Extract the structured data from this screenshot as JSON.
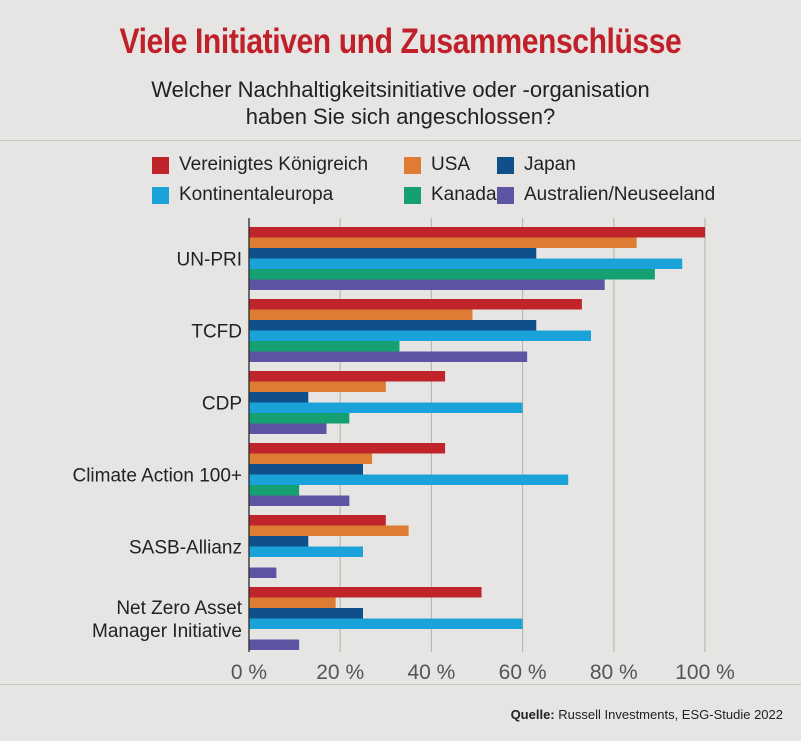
{
  "title": "Viele Initiativen und Zusammenschlüsse",
  "subtitle_line1": "Welcher Nachhaltigkeitsinitiative oder -organisation",
  "subtitle_line2": "haben Sie sich angeschlossen?",
  "source_label": "Quelle:",
  "source_text": "Russell Investments, ESG-Studie 2022",
  "colors": {
    "background": "#e6e5e3",
    "title": "#c0202a",
    "gridline": "#b9b8b5"
  },
  "chart_data": {
    "type": "bar",
    "orientation": "horizontal",
    "categories": [
      "UN-PRI",
      "TCFD",
      "CDP",
      "Climate Action 100+",
      "SASB-Allianz",
      "Net Zero Asset Manager Initiative"
    ],
    "category_labels": [
      [
        "UN-PRI"
      ],
      [
        "TCFD"
      ],
      [
        "CDP"
      ],
      [
        "Climate Action 100+"
      ],
      [
        "SASB-Allianz"
      ],
      [
        "Net Zero Asset",
        "Manager Initiative"
      ]
    ],
    "series": [
      {
        "name": "Vereinigtes Königreich",
        "color": "#c0242b",
        "values": [
          100,
          73,
          43,
          43,
          30,
          51
        ]
      },
      {
        "name": "USA",
        "color": "#df7c34",
        "values": [
          85,
          49,
          30,
          27,
          35,
          19
        ]
      },
      {
        "name": "Japan",
        "color": "#0f4f8c",
        "values": [
          63,
          63,
          13,
          25,
          13,
          25
        ]
      },
      {
        "name": "Kontinentaleuropa",
        "color": "#1aa3d8",
        "values": [
          95,
          75,
          60,
          70,
          25,
          60
        ]
      },
      {
        "name": "Kanada",
        "color": "#15a072",
        "values": [
          89,
          33,
          22,
          11,
          0,
          0
        ]
      },
      {
        "name": "Australien/Neuseeland",
        "color": "#5d54a4",
        "values": [
          78,
          61,
          17,
          22,
          6,
          11
        ]
      }
    ],
    "xlim": [
      0,
      100
    ],
    "x_ticks": [
      0,
      20,
      40,
      60,
      80,
      100
    ],
    "x_tick_labels": [
      "0 %",
      "20 %",
      "40 %",
      "60 %",
      "80 %",
      "100 %"
    ],
    "grid": true,
    "legend_position": "top"
  }
}
